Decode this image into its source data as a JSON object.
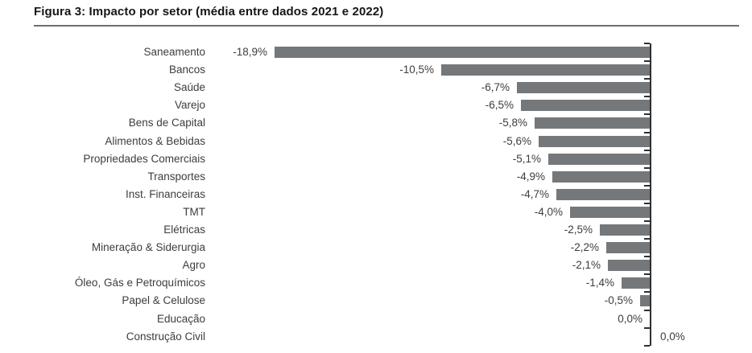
{
  "figure": {
    "title": "Figura 3: Impacto por setor (média entre dados 2021 e 2022)"
  },
  "chart_data": {
    "type": "bar",
    "orientation": "horizontal",
    "title": "Figura 3: Impacto por setor (média entre dados 2021 e 2022)",
    "xlabel": "",
    "ylabel": "",
    "xlim": [
      -20,
      0
    ],
    "grid": false,
    "legend": false,
    "categories": [
      "Saneamento",
      "Bancos",
      "Saúde",
      "Varejo",
      "Bens de Capital",
      "Alimentos & Bebidas",
      "Propriedades Comerciais",
      "Transportes",
      "Inst. Financeiras",
      "TMT",
      "Elétricas",
      "Mineração & Siderurgia",
      "Agro",
      "Óleo, Gás e Petroquímicos",
      "Papel & Celulose",
      "Educação",
      "Construção Civil"
    ],
    "values": [
      -18.9,
      -10.5,
      -6.7,
      -6.5,
      -5.8,
      -5.6,
      -5.1,
      -4.9,
      -4.7,
      -4.0,
      -2.5,
      -2.2,
      -2.1,
      -1.4,
      -0.5,
      0.0,
      0.0
    ],
    "value_labels": [
      "-18,9%",
      "-10,5%",
      "-6,7%",
      "-6,5%",
      "-5,8%",
      "-5,6%",
      "-5,1%",
      "-4,9%",
      "-4,7%",
      "-4,0%",
      "-2,5%",
      "-2,2%",
      "-2,1%",
      "-1,4%",
      "-0,5%",
      "0,0%",
      "0,0%"
    ],
    "value_label_side": [
      "left",
      "left",
      "left",
      "left",
      "left",
      "left",
      "left",
      "left",
      "left",
      "left",
      "left",
      "left",
      "left",
      "left",
      "left",
      "left",
      "right"
    ],
    "bar_color": "#75787B",
    "axis_color": "#303030",
    "label_color": "#3d3d3d"
  }
}
